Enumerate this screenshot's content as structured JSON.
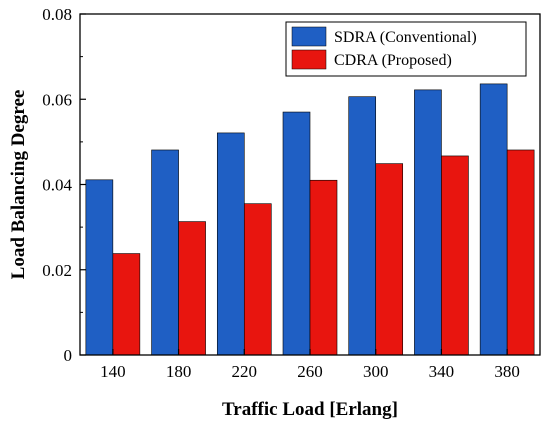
{
  "chart_data": {
    "type": "bar",
    "categories": [
      "140",
      "180",
      "220",
      "260",
      "300",
      "340",
      "380"
    ],
    "series": [
      {
        "name": "SDRA (Conventional)",
        "values": [
          0.0411,
          0.0481,
          0.0521,
          0.057,
          0.0606,
          0.0622,
          0.0636
        ],
        "color": "#1f5fc4"
      },
      {
        "name": "CDRA (Proposed)",
        "values": [
          0.0238,
          0.0313,
          0.0355,
          0.041,
          0.0449,
          0.0467,
          0.0481
        ],
        "color": "#e8150f"
      }
    ],
    "title": "",
    "xlabel": "Traffic Load [Erlang]",
    "ylabel": "Load Balancing Degree",
    "ylim": [
      0,
      0.08
    ],
    "yticks": [
      0,
      0.02,
      0.04,
      0.06,
      0.08
    ],
    "ytick_labels": [
      "0",
      "0.02",
      "0.04",
      "0.06",
      "0.08"
    ],
    "grid": false,
    "legend_position": "top-right"
  }
}
